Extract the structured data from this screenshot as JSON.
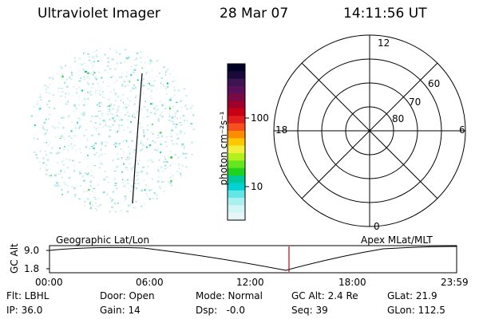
{
  "header": {
    "instrument": "Ultraviolet Imager",
    "date": "28 Mar 07",
    "time": "14:11:56 UT"
  },
  "colorbar": {
    "unit_label": "photon cm⁻²s⁻¹",
    "ticks": [
      "100",
      "10"
    ],
    "colors": [
      "#000028",
      "#1a0a3c",
      "#3c1450",
      "#5a0f5a",
      "#780a46",
      "#a0002a",
      "#c80014",
      "#e11e1e",
      "#f5501e",
      "#ff8c00",
      "#ffc800",
      "#f0f03c",
      "#b4f01e",
      "#64e61e",
      "#1ed21e",
      "#00c896",
      "#00d2d2",
      "#64e6e6",
      "#aaf0f0",
      "#d2f5f5",
      "#e6f5f5"
    ]
  },
  "polar_grid": {
    "mlt_labels": {
      "top": "12",
      "left": "18",
      "right": "6",
      "bottom": "0"
    },
    "lat_labels": [
      "60",
      "70",
      "80"
    ]
  },
  "timeline": {
    "left_label": "Geographic Lat/Lon",
    "right_label": "Apex MLat/MLT",
    "y_axis_title": "GC Alt",
    "y_ticks": [
      "9.0",
      "1.8"
    ],
    "x_ticks": [
      "00:00",
      "06:00",
      "12:00",
      "18:00",
      "23:59"
    ],
    "current_time_marker": "14:11:56",
    "marker_color": "#c80000"
  },
  "footer": {
    "row1": {
      "filter": "Flt: LBHL",
      "door": "Door: Open",
      "mode": "Mode: Normal",
      "gc_alt": "GC Alt: 2.4 Re",
      "glat": "GLat:  21.9"
    },
    "row2": {
      "ip": "IP: 36.0",
      "gain": "Gain: 14",
      "dsp": "Dsp:   -0.0",
      "seq": "Seq: 39",
      "glon": "GLon: 112.5"
    }
  }
}
